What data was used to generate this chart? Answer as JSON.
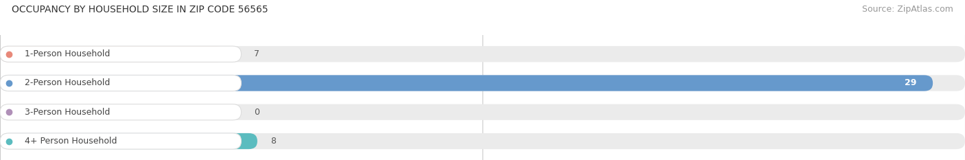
{
  "title": "OCCUPANCY BY HOUSEHOLD SIZE IN ZIP CODE 56565",
  "source": "Source: ZipAtlas.com",
  "categories": [
    "1-Person Household",
    "2-Person Household",
    "3-Person Household",
    "4+ Person Household"
  ],
  "values": [
    7,
    29,
    0,
    8
  ],
  "bar_colors": [
    "#e8897a",
    "#6699cc",
    "#b090b8",
    "#5bbcbf"
  ],
  "background_color": "#ffffff",
  "bar_bg_color": "#ebebeb",
  "xlim": [
    0,
    30
  ],
  "xticks": [
    0,
    15,
    30
  ],
  "title_fontsize": 10,
  "label_fontsize": 9,
  "value_fontsize": 9,
  "source_fontsize": 9,
  "bar_height": 0.55,
  "fig_width": 14.06,
  "fig_height": 2.33,
  "bar_rounding": 0.27
}
